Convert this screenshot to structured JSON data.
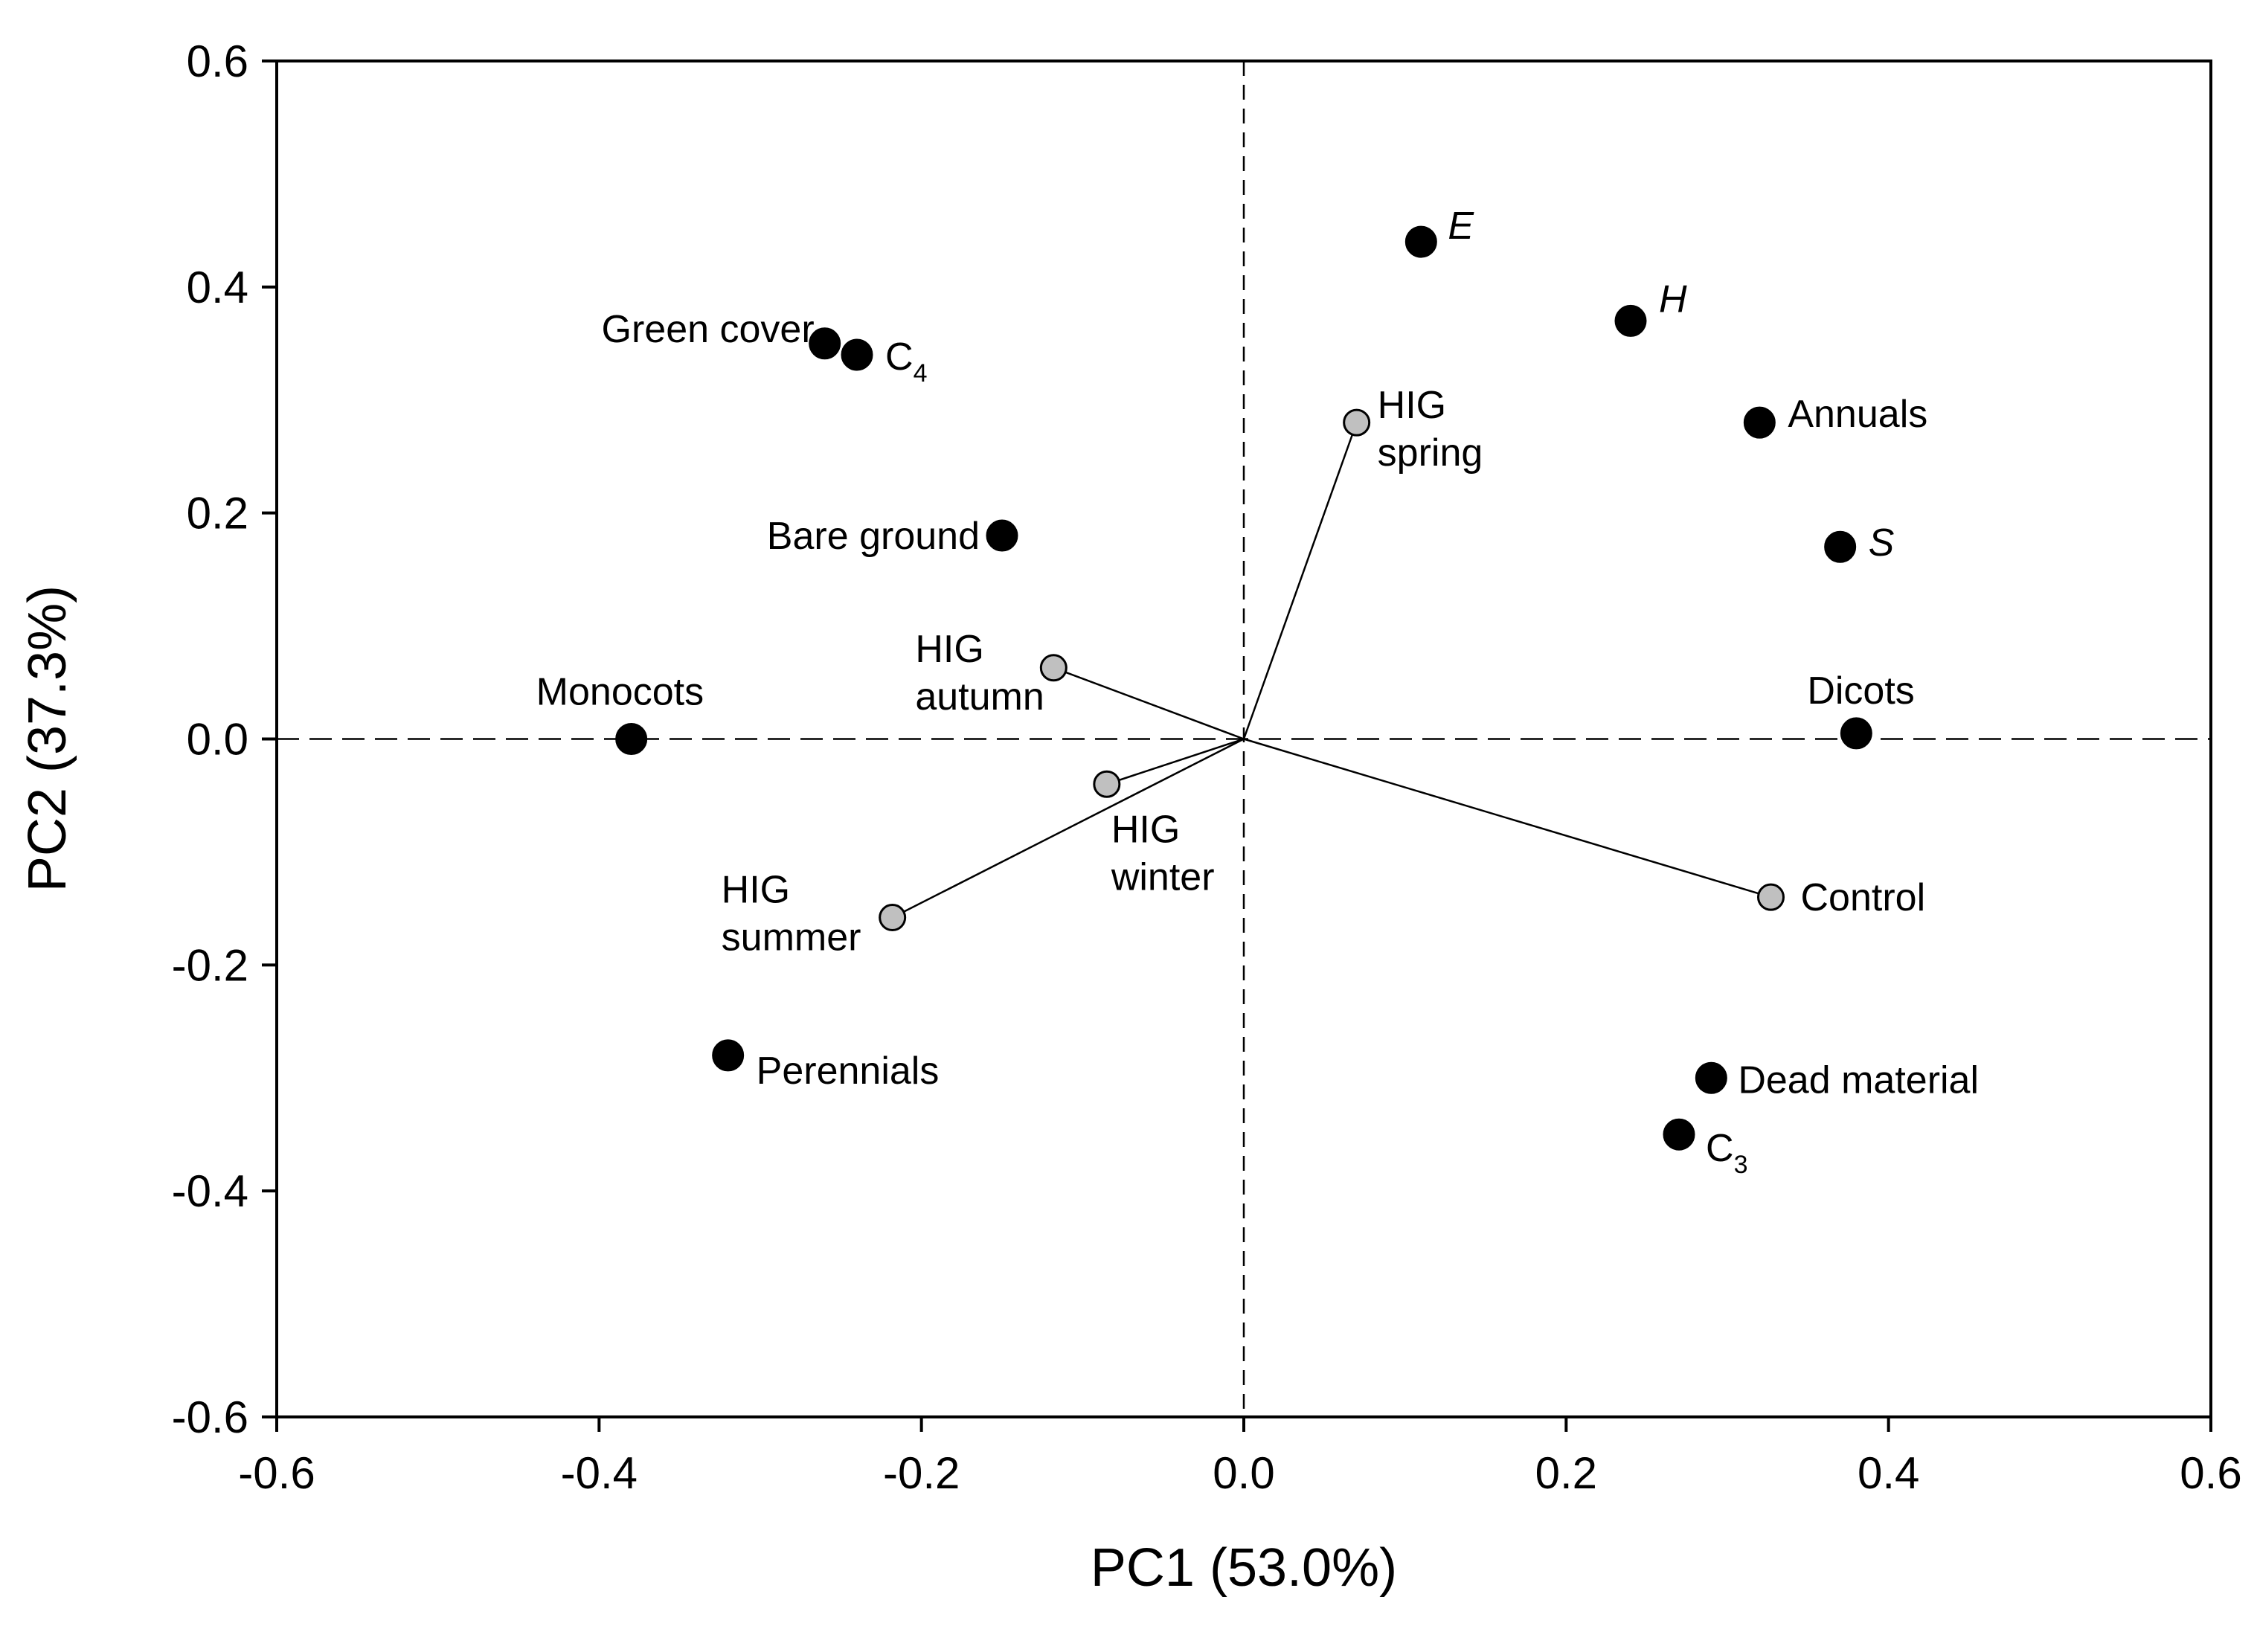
{
  "chart_data": {
    "type": "scatter",
    "title": "",
    "xlabel": "PC1 (53.0%)",
    "ylabel": "PC2 (37.3%)",
    "xlim": [
      -0.6,
      0.6
    ],
    "ylim": [
      -0.6,
      0.6
    ],
    "xticks": [
      "-0.6",
      "-0.4",
      "-0.2",
      "0.0",
      "0.2",
      "0.4",
      "0.6"
    ],
    "yticks": [
      "-0.6",
      "-0.4",
      "-0.2",
      "0.0",
      "0.2",
      "0.4",
      "0.6"
    ],
    "grid": false,
    "colors": {
      "variable": "#000000",
      "treatment": "#c0c0c0",
      "line": "#000000"
    },
    "series": [
      {
        "name": "Variables",
        "marker": "black",
        "points": [
          {
            "label": "E",
            "italic": true,
            "x": 0.11,
            "y": 0.44
          },
          {
            "label": "H",
            "italic": true,
            "x": 0.24,
            "y": 0.37
          },
          {
            "label": "Green cover",
            "x": -0.26,
            "y": 0.35
          },
          {
            "label": "C",
            "sub": "4",
            "x": -0.24,
            "y": 0.34
          },
          {
            "label": "Annuals",
            "x": 0.32,
            "y": 0.28
          },
          {
            "label": "Bare ground",
            "x": -0.15,
            "y": 0.18
          },
          {
            "label": "S",
            "italic": true,
            "x": 0.37,
            "y": 0.17
          },
          {
            "label": "Monocots",
            "x": -0.38,
            "y": 0.0
          },
          {
            "label": "Dicots",
            "x": 0.38,
            "y": 0.005
          },
          {
            "label": "Perennials",
            "x": -0.32,
            "y": -0.28
          },
          {
            "label": "Dead material",
            "x": 0.29,
            "y": -0.3
          },
          {
            "label": "C",
            "sub": "3",
            "x": 0.27,
            "y": -0.35
          }
        ]
      },
      {
        "name": "Treatments",
        "marker": "gray",
        "vectors": true,
        "points": [
          {
            "label_lines": [
              "HIG",
              "spring"
            ],
            "x": 0.07,
            "y": 0.28
          },
          {
            "label_lines": [
              "HIG",
              "autumn"
            ],
            "x": -0.118,
            "y": 0.063
          },
          {
            "label_lines": [
              "HIG",
              "winter"
            ],
            "x": -0.085,
            "y": -0.04
          },
          {
            "label_lines": [
              "HIG",
              "summer"
            ],
            "x": -0.218,
            "y": -0.158
          },
          {
            "label": "Control",
            "x": 0.327,
            "y": -0.14
          }
        ]
      }
    ]
  }
}
